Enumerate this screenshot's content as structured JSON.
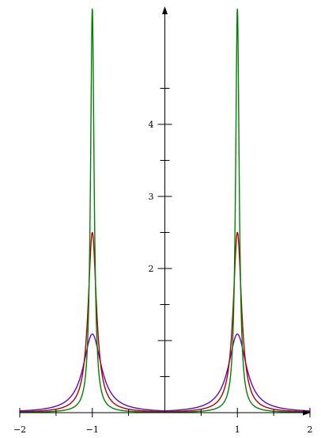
{
  "chart_data": {
    "type": "line",
    "title": "",
    "xlabel": "",
    "ylabel": "",
    "xlim": [
      -2,
      2
    ],
    "ylim": [
      0,
      5.6
    ],
    "x_ticks": [
      -2,
      -1.5,
      -1,
      -0.5,
      0.5,
      1,
      1.5,
      2
    ],
    "x_tick_labels": [
      {
        "value": -2,
        "text": "−2"
      },
      {
        "value": -1,
        "text": "−1"
      },
      {
        "value": 1,
        "text": "1"
      },
      {
        "value": 2,
        "text": "2"
      }
    ],
    "y_ticks": [
      0.5,
      1,
      1.5,
      2,
      2.5,
      3,
      3.5,
      4,
      4.5
    ],
    "y_tick_labels": [
      {
        "value": 2,
        "text": "2"
      },
      {
        "value": 3,
        "text": "3"
      },
      {
        "value": 4,
        "text": "4"
      }
    ],
    "grid": false,
    "series": [
      {
        "color": "#6a00c8",
        "epsilon": 0.15,
        "peak": 1.09
      },
      {
        "color": "#b00000",
        "epsilon": 0.07,
        "peak": 2.5
      },
      {
        "color": "#008000",
        "epsilon": 0.03,
        "peak": 5.6
      }
    ]
  }
}
